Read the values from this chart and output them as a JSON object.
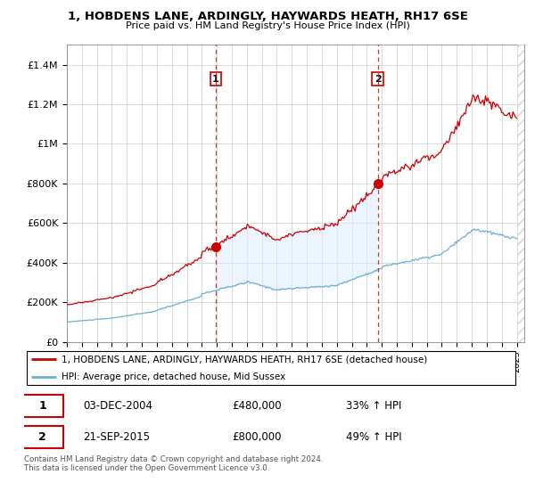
{
  "title": "1, HOBDENS LANE, ARDINGLY, HAYWARDS HEATH, RH17 6SE",
  "subtitle": "Price paid vs. HM Land Registry's House Price Index (HPI)",
  "ylabel_ticks": [
    "£0",
    "£200K",
    "£400K",
    "£600K",
    "£800K",
    "£1M",
    "£1.2M",
    "£1.4M"
  ],
  "ytick_values": [
    0,
    200000,
    400000,
    600000,
    800000,
    1000000,
    1200000,
    1400000
  ],
  "ylim": [
    0,
    1500000
  ],
  "xlim_start": 1995.0,
  "xlim_end": 2025.5,
  "hpi_color": "#6aaed6",
  "price_color": "#cc0000",
  "sale1_x": 2004.92,
  "sale1_y": 480000,
  "sale2_x": 2015.72,
  "sale2_y": 800000,
  "sale1_label": "1",
  "sale2_label": "2",
  "vline_color": "#cc0000",
  "bg_fill_color": "#ddeeff",
  "legend_line1": "1, HOBDENS LANE, ARDINGLY, HAYWARDS HEATH, RH17 6SE (detached house)",
  "legend_line2": "HPI: Average price, detached house, Mid Sussex",
  "note1_label": "1",
  "note1_date": "03-DEC-2004",
  "note1_price": "£480,000",
  "note1_pct": "33% ↑ HPI",
  "note2_label": "2",
  "note2_date": "21-SEP-2015",
  "note2_price": "£800,000",
  "note2_pct": "49% ↑ HPI",
  "footer": "Contains HM Land Registry data © Crown copyright and database right 2024.\nThis data is licensed under the Open Government Licence v3.0."
}
